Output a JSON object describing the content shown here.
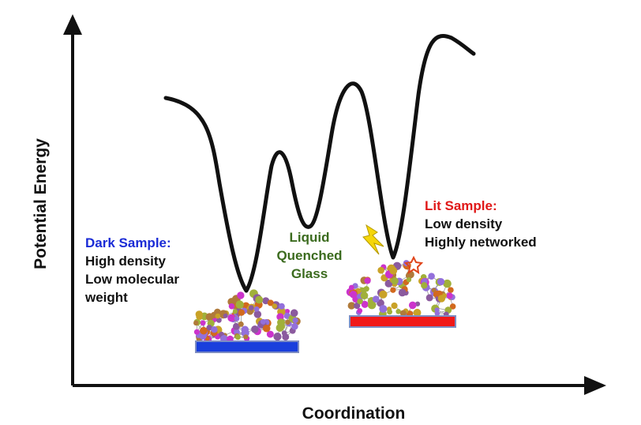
{
  "axes": {
    "y_label": "Potential Energy",
    "x_label": "Coordination"
  },
  "states": {
    "dark": {
      "title": "Dark Sample:",
      "lines": [
        "High density",
        "Low molecular",
        "weight"
      ],
      "substrate_color": "#1a3fdc"
    },
    "glass": {
      "lines": [
        "Liquid",
        "Quenched",
        "Glass"
      ]
    },
    "lit": {
      "title": "Lit Sample:",
      "lines": [
        "Low density",
        "Highly networked"
      ],
      "substrate_color": "#f01818"
    }
  },
  "colors": {
    "dark_title": "#1a2bd6",
    "glass_text": "#3b6b1e",
    "lit_title": "#e01818",
    "curve": "#111111",
    "lightning": "#f5d60a",
    "star": "#e0451a",
    "atom_palette": [
      "#8b5a9e",
      "#c9a227",
      "#d2691e",
      "#a0b03a",
      "#cc33cc",
      "#b07a3a",
      "#9370db"
    ]
  },
  "icons": {
    "light_icon": "lightning-icon",
    "excitation_icon": "star-icon"
  }
}
